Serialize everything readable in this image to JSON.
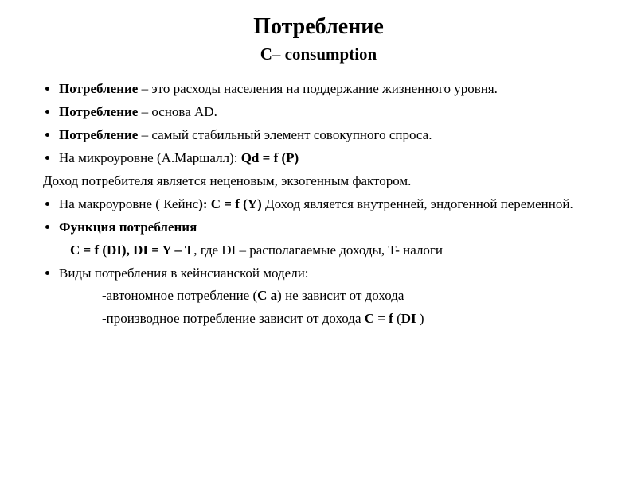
{
  "title": "Потребление",
  "subtitle": "С– consumption",
  "items": {
    "i0_lead": "Потребление",
    "i0_rest": " – это расходы населения на поддержание жизненного уровня.",
    "i1_lead": "Потребление",
    "i1_rest": " – основа  AD.",
    "i2_lead": "Потребление",
    "i2_rest": " – самый стабильный элемент совокупного спроса.",
    "i3_a": "На микроуровне (А.Маршалл):  ",
    "i3_b": "Qd = f (P)",
    "i4": " Доход потребителя  является неценовым, экзогенным фактором.",
    "i5_a": "На макроуровне ( Кейнс",
    "i5_b": "):  С = f (Y)",
    "i5_c": "   Доход является внутренней, эндогенной переменной.",
    "i6": " Функция потребления",
    "i7_a": "     С = f (DI), DI = Y – T",
    "i7_b": ", где DI – располагаемые доходы, T- налоги",
    "i8": "Виды потребления в кейнсианской модели:",
    "i9_a": " -",
    "i9_b": "автономное потребление  ",
    "i9_c": "(",
    "i9_d": "С а",
    "i9_e": ") не зависит от дохода",
    "i10_a": "-",
    "i10_b": "производное потребление  зависит от дохода   ",
    "i10_c": "С",
    "i10_d": " = ",
    "i10_e": "f",
    "i10_f": " (",
    "i10_g": "DI",
    "i10_h": " )"
  }
}
